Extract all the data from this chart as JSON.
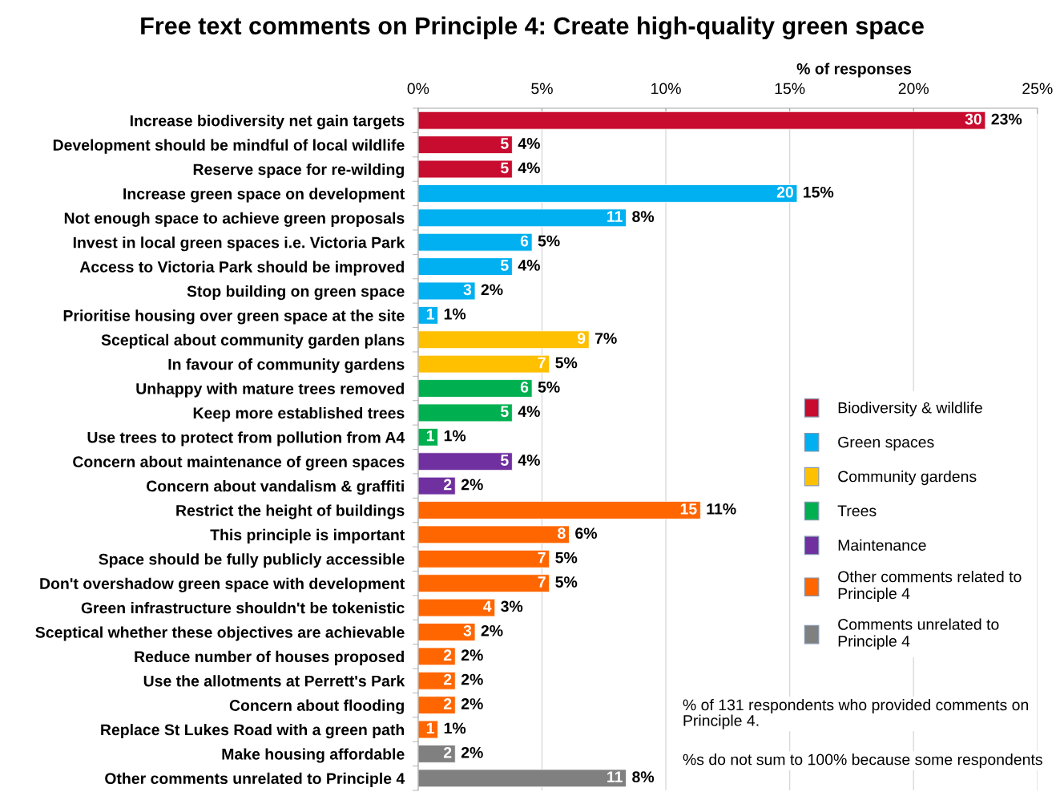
{
  "chart_data": {
    "type": "bar",
    "orientation": "horizontal",
    "stacked": true,
    "title": "Free text comments on Principle 4: Create high-quality green space",
    "xlabel": "% of responses",
    "categories": [
      "Increase biodiversity net gain targets",
      "Development should be mindful of local wildlife",
      "Reserve space for re-wilding",
      "Increase green space on development",
      "Not enough space to achieve green proposals",
      "Invest in local green spaces i.e. Victoria Park",
      "Access to Victoria Park should be improved",
      "Stop building on green space",
      "Prioritise housing over green space at the site",
      "Sceptical about community garden plans",
      "In favour of community gardens",
      "Unhappy with mature trees removed",
      "Keep more established trees",
      "Use trees to protect from pollution from A4",
      "Concern about maintenance of green spaces",
      "Concern about vandalism & graffiti",
      "Restrict the height of buildings",
      "This principle is important",
      "Space should be fully publicly accessible",
      "Don't overshadow green space with development",
      "Green infrastructure shouldn't be tokenistic",
      "Sceptical whether these objectives are achievable",
      "Reduce number of houses proposed",
      "Use the allotments at Perrett's Park",
      "Concern about flooding",
      "Replace St Lukes Road with a green path",
      "Make housing affordable",
      "Other comments unrelated to Principle 4"
    ],
    "series": [
      {
        "name": "Biodiversity & wildlife",
        "color": "#c80c2f",
        "values": [
          22.9,
          3.8,
          3.8,
          null,
          null,
          null,
          null,
          null,
          null,
          null,
          null,
          null,
          null,
          null,
          null,
          null,
          null,
          null,
          null,
          null,
          null,
          null,
          null,
          null,
          null,
          null,
          null,
          null
        ],
        "value_labels": [
          "23%",
          "4%",
          "4%",
          null,
          null,
          null,
          null,
          null,
          null,
          null,
          null,
          null,
          null,
          null,
          null,
          null,
          null,
          null,
          null,
          null,
          null,
          null,
          null,
          null,
          null,
          null,
          null,
          null
        ]
      },
      {
        "name": "Green spaces",
        "color": "#00b0f0",
        "values": [
          null,
          null,
          null,
          15.3,
          8.4,
          4.6,
          3.8,
          2.3,
          0.8,
          null,
          null,
          null,
          null,
          null,
          null,
          null,
          null,
          null,
          null,
          null,
          null,
          null,
          null,
          null,
          null,
          null,
          null,
          null
        ],
        "value_labels": [
          null,
          null,
          null,
          "15%",
          "8%",
          "5%",
          "4%",
          "2%",
          "1%",
          null,
          null,
          null,
          null,
          null,
          null,
          null,
          null,
          null,
          null,
          null,
          null,
          null,
          null,
          null,
          null,
          null,
          null,
          null
        ]
      },
      {
        "name": "Community gardens",
        "color": "#ffc000",
        "values": [
          null,
          null,
          null,
          null,
          null,
          null,
          null,
          null,
          null,
          6.9,
          5.3,
          null,
          null,
          null,
          null,
          null,
          null,
          null,
          null,
          null,
          null,
          null,
          null,
          null,
          null,
          null,
          null,
          null
        ],
        "value_labels": [
          null,
          null,
          null,
          null,
          null,
          null,
          null,
          null,
          null,
          "7%",
          "5%",
          null,
          null,
          null,
          null,
          null,
          null,
          null,
          null,
          null,
          null,
          null,
          null,
          null,
          null,
          null,
          null,
          null
        ]
      },
      {
        "name": "Trees",
        "color": "#00b050",
        "values": [
          null,
          null,
          null,
          null,
          null,
          null,
          null,
          null,
          null,
          null,
          null,
          4.6,
          3.8,
          0.8,
          null,
          null,
          null,
          null,
          null,
          null,
          null,
          null,
          null,
          null,
          null,
          null,
          null,
          null
        ],
        "value_labels": [
          null,
          null,
          null,
          null,
          null,
          null,
          null,
          null,
          null,
          null,
          null,
          "5%",
          "4%",
          "1%",
          null,
          null,
          null,
          null,
          null,
          null,
          null,
          null,
          null,
          null,
          null,
          null,
          null,
          null
        ]
      },
      {
        "name": "Maintenance",
        "color": "#7030a0",
        "values": [
          null,
          null,
          null,
          null,
          null,
          null,
          null,
          null,
          null,
          null,
          null,
          null,
          null,
          null,
          3.8,
          1.5,
          null,
          null,
          null,
          null,
          null,
          null,
          null,
          null,
          null,
          null,
          null,
          null
        ],
        "value_labels": [
          null,
          null,
          null,
          null,
          null,
          null,
          null,
          null,
          null,
          null,
          null,
          null,
          null,
          null,
          "4%",
          "2%",
          null,
          null,
          null,
          null,
          null,
          null,
          null,
          null,
          null,
          null,
          null,
          null
        ]
      },
      {
        "name": "Other comments related to Principle 4",
        "color": "#ff6600",
        "values": [
          null,
          null,
          null,
          null,
          null,
          null,
          null,
          null,
          null,
          null,
          null,
          null,
          null,
          null,
          null,
          null,
          11.4,
          6.1,
          5.3,
          5.3,
          3.1,
          2.3,
          1.5,
          1.5,
          1.5,
          0.8,
          null,
          null
        ],
        "value_labels": [
          null,
          null,
          null,
          null,
          null,
          null,
          null,
          null,
          null,
          null,
          null,
          null,
          null,
          null,
          null,
          null,
          "11%",
          "6%",
          "5%",
          "5%",
          "3%",
          "2%",
          "2%",
          "2%",
          "2%",
          "1%",
          null,
          null
        ]
      },
      {
        "name": "Comments unrelated to Principle 4",
        "color": "#808080",
        "values": [
          null,
          null,
          null,
          null,
          null,
          null,
          null,
          null,
          null,
          null,
          null,
          null,
          null,
          null,
          null,
          null,
          null,
          null,
          null,
          null,
          null,
          null,
          null,
          null,
          null,
          null,
          1.5,
          8.4
        ],
        "value_labels": [
          null,
          null,
          null,
          null,
          null,
          null,
          null,
          null,
          null,
          null,
          null,
          null,
          null,
          null,
          null,
          null,
          null,
          null,
          null,
          null,
          null,
          null,
          null,
          null,
          null,
          null,
          "2%",
          "8%"
        ]
      }
    ],
    "xlim": [
      0,
      25
    ],
    "xticks": [
      {
        "value": 0,
        "label": "0%"
      },
      {
        "value": 5,
        "label": "5%"
      },
      {
        "value": 10,
        "label": "10%"
      },
      {
        "value": 15,
        "label": "15%"
      },
      {
        "value": 20,
        "label": "20%"
      },
      {
        "value": 25,
        "label": "25%"
      }
    ],
    "grid": "x",
    "legend": "right",
    "annotations": [
      "% of 131 respondents who provided comments on Principle 4.",
      "%s do not sum to 100% because some respondents",
      {
        "text": "11",
        "x": 8.4,
        "y": "Other comments unrelated to Principle 4"
      },
      {
        "text": "2",
        "x": 1.5,
        "y": "Make housing affordable"
      },
      {
        "text": "1",
        "x": 0.8,
        "y": "Replace St Lukes Road with a green path"
      },
      {
        "text": "2",
        "x": 1.5,
        "y": "Concern about flooding"
      },
      {
        "text": "2",
        "x": 1.5,
        "y": "Use the allotments at Perrett's Park"
      },
      {
        "text": "2",
        "x": 1.5,
        "y": "Reduce number of houses proposed"
      },
      {
        "text": "3",
        "x": 2.3,
        "y": "Sceptical whether these objectives are achievable"
      },
      {
        "text": "4",
        "x": 3.1,
        "y": "Green infrastructure shouldn't be tokenistic"
      },
      {
        "text": "7",
        "x": 5.3,
        "y": "Don't overshadow green space with development"
      },
      {
        "text": "7",
        "x": 5.3,
        "y": "Space should be fully publicly accessible"
      },
      {
        "text": "8",
        "x": 6.1,
        "y": "This principle is important"
      },
      {
        "text": "15",
        "x": 11.4,
        "y": "Restrict the height of buildings"
      },
      {
        "text": "2",
        "x": 1.5,
        "y": "Concern about vandalism & graffiti"
      },
      {
        "text": "5",
        "x": 3.8,
        "y": "Concern about maintenance of green spaces"
      },
      {
        "text": "1",
        "x": 0.8,
        "y": "Use trees to protect from pollution from A4"
      },
      {
        "text": "5",
        "x": 3.8,
        "y": "Keep more established trees"
      },
      {
        "text": "6",
        "x": 4.6,
        "y": "Unhappy with mature trees removed"
      },
      {
        "text": "7",
        "x": 5.3,
        "y": "In favour of community gardens"
      },
      {
        "text": "9",
        "x": 6.9,
        "y": "Sceptical about community garden plans"
      },
      {
        "text": "1",
        "x": 0.8,
        "y": "Prioritise housing over green space at the site"
      },
      {
        "text": "3",
        "x": 2.3,
        "y": "Stop building on green space"
      },
      {
        "text": "5",
        "x": 3.8,
        "y": "Access to Victoria Park should be improved"
      },
      {
        "text": "6",
        "x": 4.6,
        "y": "Invest in local green spaces i.e. Victoria Park"
      },
      {
        "text": "11",
        "x": 8.4,
        "y": "Not enough space to achieve green proposals"
      },
      {
        "text": "20",
        "x": 15.3,
        "y": "Increase green space on development"
      },
      {
        "text": "5",
        "x": 3.8,
        "y": "Reserve space for re-wilding"
      },
      {
        "text": "5",
        "x": 3.8,
        "y": "Development should be mindful of local wildlife"
      },
      {
        "text": "30",
        "x": 22.9,
        "y": "Increase biodiversity net gain targets"
      }
    ]
  }
}
